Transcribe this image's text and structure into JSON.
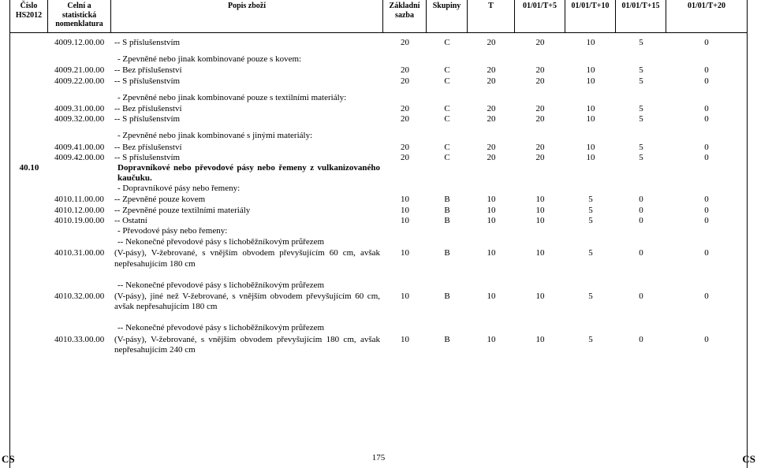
{
  "header": {
    "hs": "Číslo\nHS2012",
    "nom": "Celní a statistická nomenklatura",
    "desc": "Popis zboží",
    "sazba": "Základní\nsazba",
    "sk": "Skupiny",
    "t": "T",
    "t5": "01/01/T+5",
    "t10": "01/01/T+10",
    "t15": "01/01/T+15",
    "t20": "01/01/T+20"
  },
  "section_hs": "40.10",
  "rows": [
    {
      "type": "data",
      "hs": "",
      "nom": "4009.12.00.00",
      "desc": "-- S příslušenstvím",
      "sazba": "20",
      "sk": "C",
      "t": "20",
      "t5": "20",
      "t10": "10",
      "t15": "5",
      "t20": "0"
    },
    {
      "type": "group",
      "desc": "- Zpevněné nebo jinak kombinované pouze s kovem:"
    },
    {
      "type": "data",
      "hs": "",
      "nom": "4009.21.00.00",
      "desc": "-- Bez příslušenství",
      "sazba": "20",
      "sk": "C",
      "t": "20",
      "t5": "20",
      "t10": "10",
      "t15": "5",
      "t20": "0"
    },
    {
      "type": "data",
      "hs": "",
      "nom": "4009.22.00.00",
      "desc": "-- S příslušenstvím",
      "sazba": "20",
      "sk": "C",
      "t": "20",
      "t5": "20",
      "t10": "10",
      "t15": "5",
      "t20": "0"
    },
    {
      "type": "group",
      "desc": "- Zpevněné nebo jinak kombinované pouze s textilními materiály:"
    },
    {
      "type": "data",
      "hs": "",
      "nom": "4009.31.00.00",
      "desc": "-- Bez příslušenství",
      "sazba": "20",
      "sk": "C",
      "t": "20",
      "t5": "20",
      "t10": "10",
      "t15": "5",
      "t20": "0"
    },
    {
      "type": "data",
      "hs": "",
      "nom": "4009.32.00.00",
      "desc": "-- S příslušenstvím",
      "sazba": "20",
      "sk": "C",
      "t": "20",
      "t5": "20",
      "t10": "10",
      "t15": "5",
      "t20": "0"
    },
    {
      "type": "group",
      "desc": "- Zpevněné nebo jinak kombinované s jinými materiály:"
    },
    {
      "type": "data",
      "hs": "",
      "nom": "4009.41.00.00",
      "desc": "-- Bez příslušenství",
      "sazba": "20",
      "sk": "C",
      "t": "20",
      "t5": "20",
      "t10": "10",
      "t15": "5",
      "t20": "0"
    },
    {
      "type": "data",
      "hs": "",
      "nom": "4009.42.00.00",
      "desc": "-- S příslušenstvím",
      "sazba": "20",
      "sk": "C",
      "t": "20",
      "t5": "20",
      "t10": "10",
      "t15": "5",
      "t20": "0"
    },
    {
      "type": "heading",
      "desc": "Dopravníkové nebo převodové pásy nebo řemeny z vulkanizovaného kaučuku."
    },
    {
      "type": "group",
      "desc": "- Dopravníkové pásy nebo řemeny:"
    },
    {
      "type": "data",
      "hs": "",
      "nom": "4010.11.00.00",
      "desc": "-- Zpevněné pouze kovem",
      "sazba": "10",
      "sk": "B",
      "t": "10",
      "t5": "10",
      "t10": "5",
      "t15": "0",
      "t20": "0"
    },
    {
      "type": "data",
      "hs": "",
      "nom": "4010.12.00.00",
      "desc": "-- Zpevněné pouze textilními materiály",
      "sazba": "10",
      "sk": "B",
      "t": "10",
      "t5": "10",
      "t10": "5",
      "t15": "0",
      "t20": "0"
    },
    {
      "type": "data",
      "hs": "",
      "nom": "4010.19.00.00",
      "desc": "-- Ostatní",
      "sazba": "10",
      "sk": "B",
      "t": "10",
      "t5": "10",
      "t10": "5",
      "t15": "0",
      "t20": "0"
    },
    {
      "type": "group",
      "desc": "- Převodové pásy nebo řemeny:"
    },
    {
      "type": "group",
      "desc": "-- Nekonečné převodové pásy s lichoběžníkovým průřezem"
    },
    {
      "type": "data",
      "hs": "",
      "nom": "4010.31.00.00",
      "desc": "(V-pásy), V-žebrované, s vnějším obvodem převyšujícím 60 cm, avšak nepřesahujícím 180 cm",
      "sazba": "10",
      "sk": "B",
      "t": "10",
      "t5": "10",
      "t10": "5",
      "t15": "0",
      "t20": "0"
    },
    {
      "type": "spacer"
    },
    {
      "type": "group",
      "desc": "-- Nekonečné převodové pásy s lichoběžníkovým průřezem"
    },
    {
      "type": "data",
      "hs": "",
      "nom": "4010.32.00.00",
      "desc": "(V-pásy), jiné než V-žebrované, s vnějším obvodem převyšujícím 60 cm, avšak nepřesahujícím 180 cm",
      "sazba": "10",
      "sk": "B",
      "t": "10",
      "t5": "10",
      "t10": "5",
      "t15": "0",
      "t20": "0"
    },
    {
      "type": "spacer"
    },
    {
      "type": "group",
      "desc": "-- Nekonečné převodové pásy s lichoběžníkovým průřezem"
    },
    {
      "type": "data",
      "hs": "",
      "nom": "4010.33.00.00",
      "desc": "(V-pásy), V-žebrované, s vnějším obvodem převyšujícím 180 cm, avšak nepřesahujícím 240 cm",
      "sazba": "10",
      "sk": "B",
      "t": "10",
      "t5": "10",
      "t10": "5",
      "t15": "0",
      "t20": "0"
    }
  ],
  "footer": {
    "left": "CS",
    "page": "175",
    "right": "CS"
  }
}
